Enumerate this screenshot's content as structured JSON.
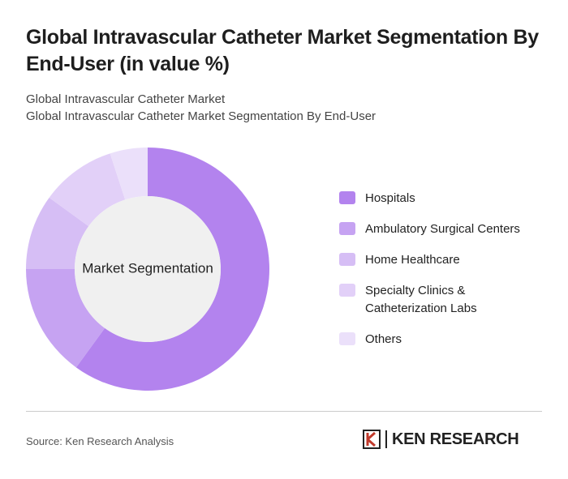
{
  "chart_data": {
    "type": "donut",
    "title": "Global Intravascular Catheter Market Segmentation By End-User (in value %)",
    "subtitle_1": "Global Intravascular Catheter Market",
    "subtitle_2": "Global Intravascular Catheter Market Segmentation By End-User",
    "center_label": "Market Segmentation",
    "categories": [
      "Hospitals",
      "Ambulatory Surgical Centers",
      "Home Healthcare",
      "Specialty Clinics & Catheterization Labs",
      "Others"
    ],
    "values": [
      60,
      15,
      10,
      10,
      5
    ],
    "colors": [
      "#b383ee",
      "#c6a3f2",
      "#d6bef5",
      "#e2d0f8",
      "#ebe0fa"
    ],
    "source": "Source: Ken Research Analysis",
    "logo": "KEN RESEARCH"
  }
}
